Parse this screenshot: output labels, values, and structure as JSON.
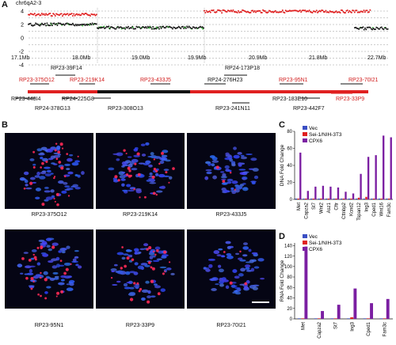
{
  "panels": {
    "a": "A",
    "b": "B",
    "c": "C",
    "d": "D"
  },
  "panel_a": {
    "chrom_label": "chr6qA2-3",
    "y_ticks": [
      "4",
      "2",
      "0",
      "-2",
      "-4"
    ],
    "x_ticks": [
      "17.1Mb",
      "18.0Mb",
      "19.0Mb",
      "19.9Mb",
      "20.9Mb",
      "21.8Mb",
      "22.7Mb"
    ],
    "bacs_above": [
      {
        "name": "RP23-39F14",
        "red": false
      },
      {
        "name": "RP24-173P18",
        "red": false
      }
    ],
    "bacs_track": [
      {
        "name": "RP23-375O12",
        "red": true
      },
      {
        "name": "RP23-219K14",
        "red": true
      },
      {
        "name": "RP23-433J5",
        "red": true
      },
      {
        "name": "RP24-276H23",
        "red": false
      },
      {
        "name": "RP23-95N1",
        "red": true
      },
      {
        "name": "RP23-70I21",
        "red": true
      }
    ],
    "bacs_below": [
      {
        "name": "RP23-448I4",
        "red": false
      },
      {
        "name": "RP24-225G8",
        "red": false
      },
      {
        "name": "RP24-378G13",
        "red": false
      },
      {
        "name": "RP23-308O13",
        "red": false
      },
      {
        "name": "RP23-183E10",
        "red": false
      },
      {
        "name": "RP23-33P9",
        "red": true
      },
      {
        "name": "RP23-241N11",
        "red": false
      },
      {
        "name": "RP23-442F7",
        "red": false
      }
    ],
    "colors": {
      "amplified": "#e02020",
      "normal": "#1a1a1a",
      "green": "#2db82d"
    }
  },
  "panel_b": {
    "images": [
      {
        "caption": "RP23-375O12"
      },
      {
        "caption": "RP23-219K14"
      },
      {
        "caption": "RP23-433J5"
      },
      {
        "caption": "RP23-95N1"
      },
      {
        "caption": "RP23-33P9"
      },
      {
        "caption": "RP23-70I21"
      }
    ]
  },
  "colors": {
    "vec": "#3b4fc4",
    "sei": "#e02020",
    "cpx6": "#7b1fa2"
  },
  "chart_data": [
    {
      "type": "bar",
      "ylabel": "DNA Fold Change",
      "categories": [
        "Met",
        "Capza2",
        "St7",
        "Wnt2",
        "Asz1",
        "Cftr",
        "Cttnbp2",
        "Kcnd2",
        "Tspan12",
        "Ing3",
        "Cped1",
        "Wnt16",
        "Fam3c"
      ],
      "series": [
        {
          "name": "Vec",
          "values": [
            1,
            1,
            1,
            1,
            1,
            1,
            1,
            1,
            1,
            1,
            1,
            1,
            1
          ]
        },
        {
          "name": "Sei-1/NIH-3T3",
          "values": [
            1,
            1,
            1,
            1,
            1,
            1,
            1,
            1,
            2,
            3,
            1,
            1,
            1
          ]
        },
        {
          "name": "CPX6",
          "values": [
            55,
            10,
            15,
            16,
            15,
            14,
            9,
            7,
            30,
            50,
            52,
            75,
            73
          ]
        }
      ],
      "y_ticks": [
        0,
        20,
        40,
        60,
        80
      ],
      "ylim": [
        0,
        80
      ]
    },
    {
      "type": "bar",
      "ylabel": "RNA Fold Change",
      "categories": [
        "Met",
        "Capza2",
        "St7",
        "Ing3",
        "Cped1",
        "Fam3c"
      ],
      "series": [
        {
          "name": "Vec",
          "values": [
            1,
            1,
            1,
            1,
            1,
            1
          ]
        },
        {
          "name": "Sei-1/NIH-3T3",
          "values": [
            1,
            1,
            1,
            3,
            1,
            1
          ]
        },
        {
          "name": "CPX6",
          "values": [
            138,
            15,
            27,
            58,
            30,
            38
          ]
        }
      ],
      "y_ticks": [
        0,
        20,
        40,
        60,
        80,
        100,
        120,
        140
      ],
      "ylim": [
        0,
        145
      ]
    }
  ]
}
